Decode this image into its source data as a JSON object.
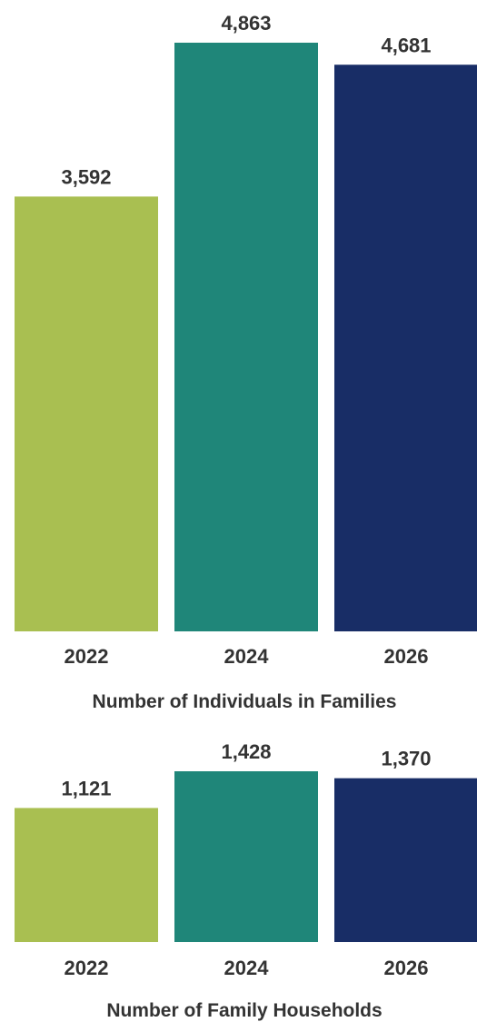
{
  "chart_data": [
    {
      "type": "bar",
      "title": "Number of Individuals in Families",
      "categories": [
        "2022",
        "2024",
        "2026"
      ],
      "values": [
        3592,
        4863,
        4681
      ],
      "value_labels": [
        "3,592",
        "4,863",
        "4,681"
      ],
      "colors": [
        "#a9bf51",
        "#1f8679",
        "#182d66"
      ],
      "xlabel": "",
      "ylabel": "",
      "ylim": [
        0,
        4863
      ],
      "grid": false,
      "legend": "none"
    },
    {
      "type": "bar",
      "title": "Number of Family Households",
      "categories": [
        "2022",
        "2024",
        "2026"
      ],
      "values": [
        1121,
        1428,
        1370
      ],
      "value_labels": [
        "1,121",
        "1,428",
        "1,370"
      ],
      "colors": [
        "#a9bf51",
        "#1f8679",
        "#182d66"
      ],
      "xlabel": "",
      "ylabel": "",
      "ylim": [
        0,
        1428
      ],
      "grid": false,
      "legend": "none"
    }
  ]
}
